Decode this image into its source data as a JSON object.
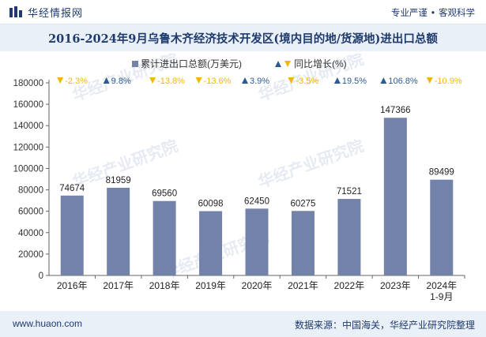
{
  "header": {
    "brand": "华经情报网",
    "slogan": "专业严谨 • 客观科学"
  },
  "footer": {
    "site": "www.huaon.com",
    "source": "数据来源：中国海关，华经产业研究院整理"
  },
  "watermark": "华经产业研究院",
  "colors": {
    "bar": "#7382a8",
    "up": "#2e5a92",
    "down": "#f2b705",
    "title": "#1f3a6d"
  },
  "chart_data": {
    "type": "bar",
    "title": "2016-2024年9月乌鲁木齐经济技术开发区(境内目的地/货源地)进出口总额",
    "categories": [
      "2016年",
      "2017年",
      "2018年",
      "2019年",
      "2020年",
      "2021年",
      "2022年",
      "2023年",
      "2024年\n1-9月"
    ],
    "series": [
      {
        "name": "累计进出口总额(万美元)",
        "values": [
          74674,
          81959,
          69560,
          60098,
          62450,
          60275,
          71521,
          147366,
          89499
        ]
      },
      {
        "name": "同比增长(%)",
        "values": [
          -2.3,
          9.8,
          -13.8,
          -13.6,
          3.9,
          -3.5,
          19.5,
          106.8,
          -10.9
        ]
      }
    ],
    "growth_labels": [
      "-2.3%",
      "9.8%",
      "-13.8%",
      "-13.6%",
      "3.9%",
      "-3.5%",
      "19.5%",
      "106.8%",
      "-10.9%"
    ],
    "ylim": [
      0,
      180000
    ],
    "yticks": [
      0,
      20000,
      40000,
      60000,
      80000,
      100000,
      120000,
      140000,
      160000,
      180000
    ],
    "legend_position": "top-center",
    "grid": false
  }
}
